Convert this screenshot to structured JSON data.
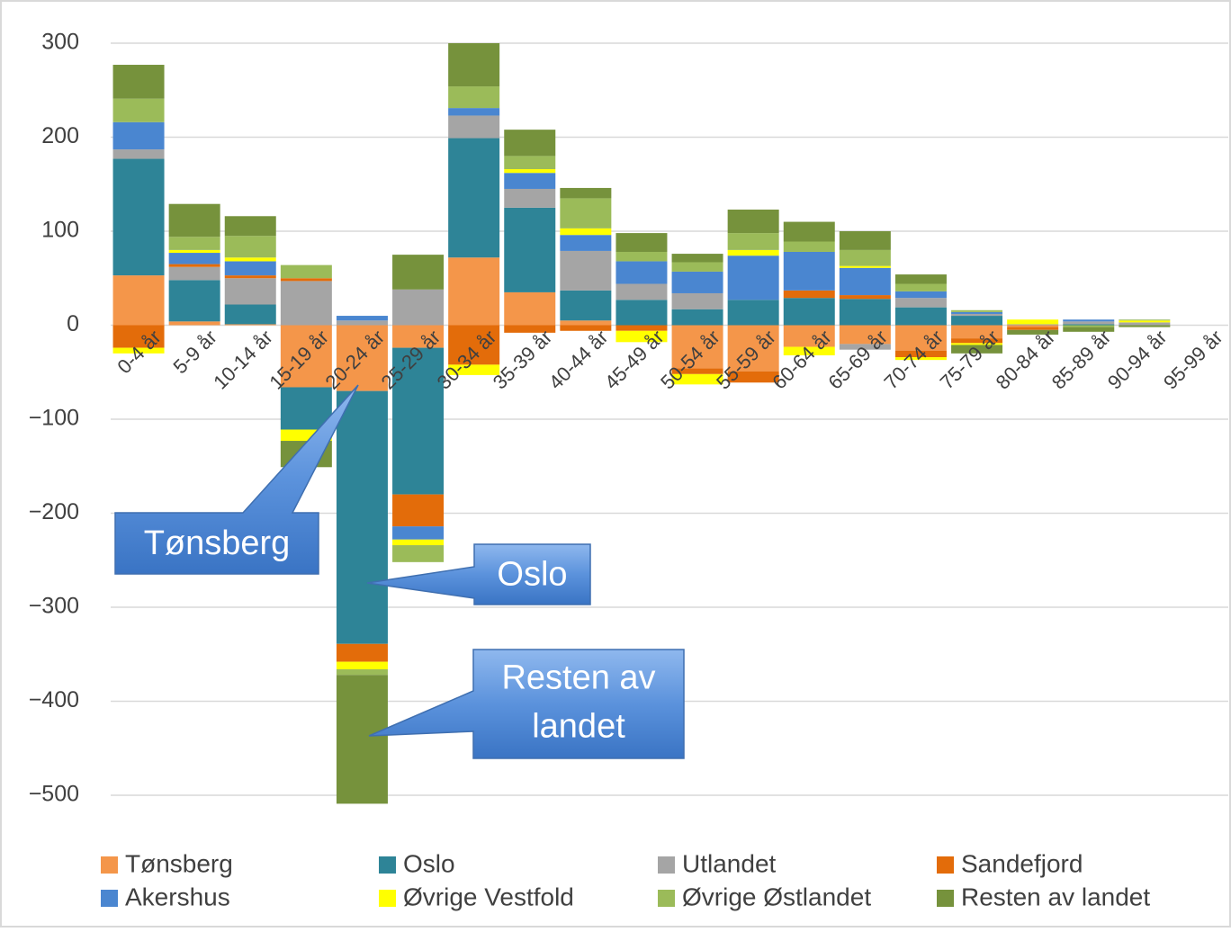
{
  "chart_data": {
    "type": "stacked_bar",
    "categories": [
      "0-4 år",
      "5-9 år",
      "10-14 år",
      "15-19 år",
      "20-24 år",
      "25-29 år",
      "30-34 år",
      "35-39 år",
      "40-44 år",
      "45-49 år",
      "50-54 år",
      "55-59 år",
      "60-64 år",
      "65-69 år",
      "70-74 år",
      "75-79 år",
      "80-84 år",
      "85-89 år",
      "90-94 år",
      "95-99 år"
    ],
    "series": [
      {
        "name": "Tønsberg",
        "color": "#f4964a",
        "values": [
          53,
          4,
          1,
          -66,
          -70,
          -24,
          72,
          35,
          5,
          0,
          -46,
          -49,
          -23,
          -20,
          -27,
          -14,
          -2,
          0,
          0,
          0
        ]
      },
      {
        "name": "Oslo",
        "color": "#2e8497",
        "values": [
          124,
          44,
          21,
          -45,
          -269,
          -156,
          127,
          90,
          32,
          27,
          17,
          27,
          29,
          28,
          19,
          10,
          0,
          1,
          0,
          0
        ]
      },
      {
        "name": "Utlandet",
        "color": "#a5a5a5",
        "values": [
          10,
          14,
          28,
          47,
          5,
          38,
          24,
          20,
          42,
          17,
          17,
          0,
          0,
          -6,
          10,
          2,
          1,
          3,
          3,
          0
        ]
      },
      {
        "name": "Sandefjord",
        "color": "#e36c0a",
        "values": [
          -24,
          3,
          3,
          3,
          -19,
          -34,
          -42,
          -8,
          -6,
          -6,
          -6,
          -12,
          8,
          4,
          -7,
          -5,
          -3,
          0,
          0,
          0
        ]
      },
      {
        "name": "Akershus",
        "color": "#4a86d0",
        "values": [
          29,
          12,
          15,
          0,
          5,
          -14,
          8,
          17,
          17,
          24,
          23,
          47,
          41,
          29,
          7,
          2,
          0,
          2,
          0,
          0
        ]
      },
      {
        "name": "Øvrige Vestfold",
        "color": "#ffff00",
        "values": [
          -6,
          3,
          4,
          -12,
          -8,
          -6,
          -11,
          4,
          7,
          -12,
          -11,
          6,
          -9,
          2,
          -3,
          -2,
          5,
          0,
          2,
          0
        ]
      },
      {
        "name": "Øvrige Østlandet",
        "color": "#9bbb59",
        "values": [
          25,
          14,
          23,
          14,
          -6,
          -18,
          23,
          14,
          32,
          10,
          10,
          18,
          11,
          17,
          8,
          2,
          0,
          -2,
          1,
          0
        ]
      },
      {
        "name": "Resten av landet",
        "color": "#76923c",
        "values": [
          36,
          35,
          21,
          -28,
          -137,
          37,
          46,
          28,
          11,
          20,
          9,
          25,
          21,
          20,
          10,
          -9,
          -5,
          -5,
          -2,
          0
        ]
      }
    ],
    "ylim": [
      -500,
      300
    ],
    "yticks": [
      {
        "value": -500,
        "label": "−500"
      },
      {
        "value": -400,
        "label": "−400"
      },
      {
        "value": -300,
        "label": "−300"
      },
      {
        "value": -200,
        "label": "−200"
      },
      {
        "value": -100,
        "label": "−100"
      },
      0,
      100,
      200,
      300
    ],
    "grid": true,
    "annotations": [
      {
        "text": "Tønsberg"
      },
      {
        "text": "Oslo"
      },
      {
        "lines": [
          "Resten av",
          "landet"
        ]
      }
    ]
  }
}
